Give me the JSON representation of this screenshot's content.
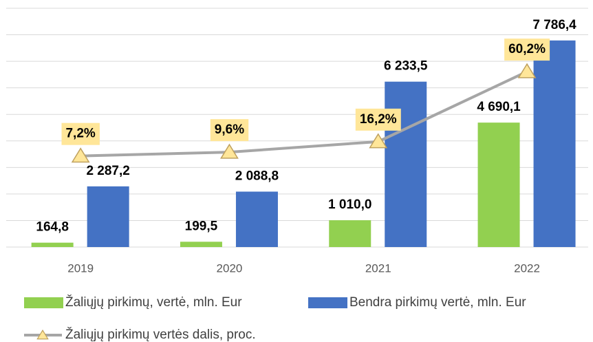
{
  "chart_data": {
    "type": "bar",
    "categories": [
      "2019",
      "2020",
      "2021",
      "2022"
    ],
    "series": [
      {
        "name": "Žaliųjų pirkimų, vertė, mln. Eur",
        "color": "#92D050",
        "values": [
          164.8,
          199.5,
          1010.0,
          4690.1
        ],
        "value_labels": [
          "164,8",
          "199,5",
          "1 010,0",
          "4 690,1"
        ]
      },
      {
        "name": "Bendra pirkimų vertė, mln. Eur",
        "color": "#4472C4",
        "values": [
          2287.2,
          2088.8,
          6233.5,
          7786.4
        ],
        "value_labels": [
          "2 287,2",
          "2 088,8",
          "6 233,5",
          "7 786,4"
        ]
      },
      {
        "name": "Žaliųjų pirkimų vertės dalis, proc.",
        "type": "line",
        "axis": "y2",
        "color": "#A6A6A6",
        "marker_color": "#FFE699",
        "values": [
          7.2,
          9.6,
          16.2,
          60.2
        ],
        "value_labels": [
          "7,2%",
          "9,6%",
          "16,2%",
          "60,2%"
        ]
      }
    ],
    "ylim": [
      0,
      9000
    ],
    "yticks": [
      0,
      1000,
      2000,
      3000,
      4000,
      5000,
      6000,
      7000,
      8000,
      9000
    ],
    "y2lim": [
      -50,
      100
    ],
    "grid": true,
    "legend": "bottom"
  }
}
